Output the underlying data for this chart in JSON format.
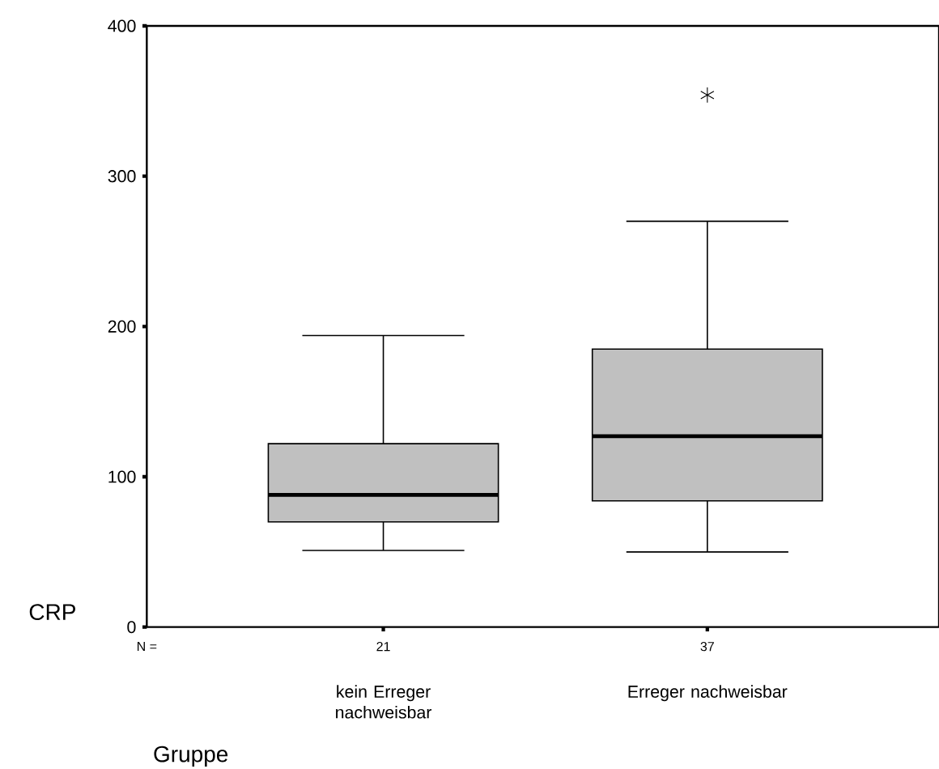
{
  "chart_data": {
    "type": "box",
    "ylabel": "CRP",
    "xlabel": "Gruppe",
    "categories": [
      "kein Erreger nachweisbar",
      "Erreger nachweisbar"
    ],
    "series": [
      {
        "color": "#c0c0c0",
        "boxes": [
          {
            "low": 51,
            "q1": 70,
            "median": 88,
            "q3": 122,
            "high": 194
          },
          {
            "low": 50,
            "q1": 84,
            "median": 127,
            "q3": 185,
            "high": 270,
            "outliers": [
              354
            ]
          }
        ]
      }
    ],
    "ylim": [
      0,
      400
    ],
    "yticks": [
      0,
      100,
      200,
      300,
      400
    ],
    "annotations": [
      "N =",
      {
        "text": "21",
        "x": "kein Erreger nachweisbar"
      },
      {
        "text": "37",
        "x": "Erreger nachweisbar"
      }
    ]
  }
}
